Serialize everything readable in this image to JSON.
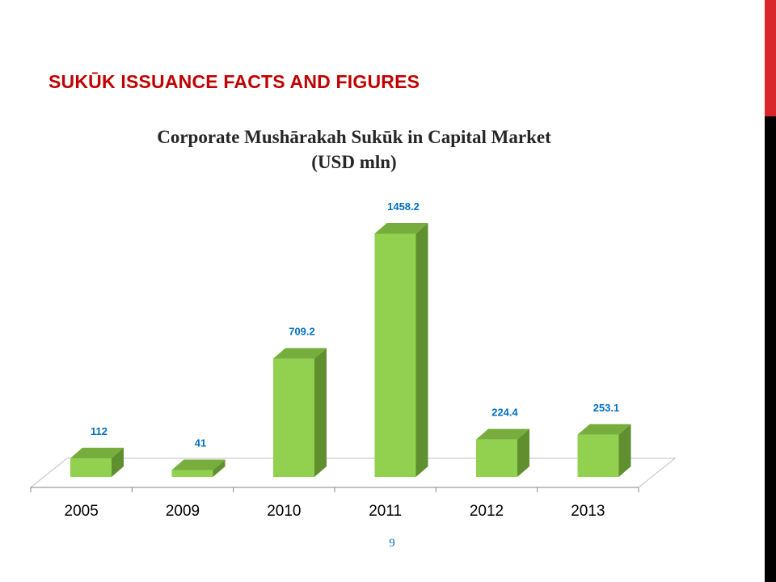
{
  "slide": {
    "title": "SUKŪK ISSUANCE FACTS AND FIGURES",
    "page_number": "9"
  },
  "colors": {
    "title": "#c00000",
    "bar_front": "#92d050",
    "bar_side": "#5f8f2e",
    "bar_top": "#76ad3c",
    "data_label": "#0070c0",
    "side_accent_red": "#d9262c",
    "side_accent_black": "#000000"
  },
  "chart_data": {
    "type": "bar",
    "style": "3d-clustered-column",
    "title_lines": [
      "Corporate Mushārakah Sukūk in Capital Market",
      "(USD mln)"
    ],
    "categories": [
      "2005",
      "2009",
      "2010",
      "2011",
      "2012",
      "2013"
    ],
    "values": [
      112,
      41,
      709.2,
      1458.2,
      224.4,
      253.1
    ],
    "value_labels": [
      "112",
      "41",
      "709.2",
      "1458.2",
      "224.4",
      "253.1"
    ],
    "xlabel": "",
    "ylabel": "",
    "ylim": [
      0,
      1600
    ],
    "y_axis_visible": false,
    "grid": false,
    "legend": "none"
  }
}
